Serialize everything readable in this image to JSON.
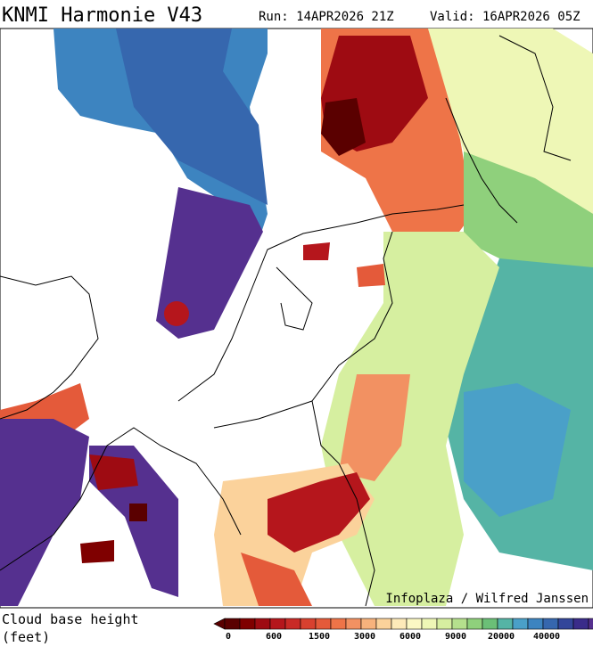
{
  "header": {
    "title": "KNMI Harmonie V43",
    "run": "Run: 14APR2026 21Z",
    "valid": "Valid: 16APR2026 05Z"
  },
  "credit": "Infoplaza / Wilfred Janssen",
  "legend": {
    "label": [
      "Cloud base height",
      "(feet)"
    ],
    "colors": [
      "#5a0000",
      "#7f0000",
      "#9e0b12",
      "#b5161c",
      "#c92a26",
      "#d8412f",
      "#e45a3a",
      "#ee7448",
      "#f29162",
      "#f7b27c",
      "#fbd29b",
      "#fdeab9",
      "#fbf8c4",
      "#eef7b6",
      "#d6efa0",
      "#b5e08d",
      "#8fd07c",
      "#6bbf77",
      "#55b4a5",
      "#4aa0c8",
      "#3d84c0",
      "#3667ae",
      "#33469a",
      "#3a2c8a",
      "#55308f",
      "#7a3d98"
    ],
    "ticks": [
      0,
      600,
      1500,
      3000,
      6000,
      9000,
      20000,
      40000
    ]
  }
}
